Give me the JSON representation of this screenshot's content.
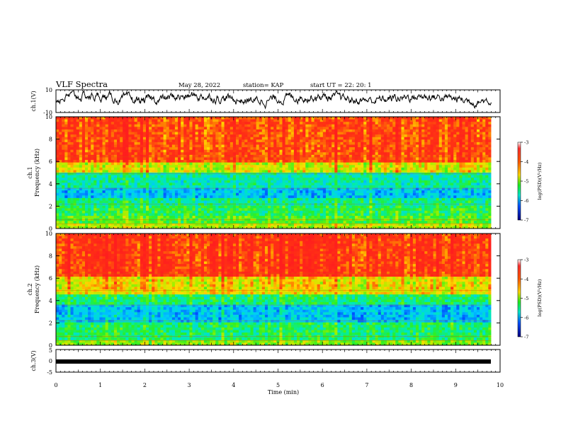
{
  "header": {
    "title": "VLF Spectra",
    "date": "May 28, 2022",
    "station": "station= KAP",
    "start": "start  UT =   22: 20: 1"
  },
  "chart_data": [
    {
      "type": "line",
      "panel": "ch1-waveform",
      "ylabel": "ch.1(V)",
      "ylim": [
        -10,
        10
      ],
      "yticks": [
        "10",
        "-10"
      ],
      "xlim": [
        0,
        10
      ],
      "series_color": "#000000",
      "series_desc": "dense noisy waveform fluctuating roughly between -6 and +8 V"
    },
    {
      "type": "heatmap",
      "panel": "ch1-spectrogram",
      "ylabel_line1": "ch.1",
      "ylabel_line2": "Frequency (kHz)",
      "ylim": [
        0,
        10
      ],
      "yticks": [
        "0",
        "2",
        "4",
        "6",
        "8",
        "10"
      ],
      "xlim": [
        0,
        9.8
      ],
      "bands": [
        {
          "from": 0,
          "to": 0.5,
          "level": -4.6
        },
        {
          "from": 0.5,
          "to": 1.2,
          "level": -5.0
        },
        {
          "from": 1.2,
          "to": 2.0,
          "level": -5.2
        },
        {
          "from": 2.0,
          "to": 2.8,
          "level": -5.4
        },
        {
          "from": 2.8,
          "to": 3.6,
          "level": -5.9
        },
        {
          "from": 3.6,
          "to": 4.9,
          "level": -5.5
        },
        {
          "from": 4.9,
          "to": 6.0,
          "level": -4.5
        },
        {
          "from": 6.0,
          "to": 10.0,
          "level": -3.7
        }
      ],
      "colorbar": {
        "label": "log(PSD)(V²/Hz)",
        "min": -7,
        "max": -3,
        "ticks": [
          "-3",
          "-4",
          "-5",
          "-6",
          "-7"
        ]
      }
    },
    {
      "type": "heatmap",
      "panel": "ch2-spectrogram",
      "ylabel_line1": "ch.2",
      "ylabel_line2": "Frequency (kHz)",
      "ylim": [
        0,
        10
      ],
      "yticks": [
        "0",
        "2",
        "4",
        "6",
        "8",
        "10"
      ],
      "xlim": [
        0,
        9.8
      ],
      "bands": [
        {
          "from": 0,
          "to": 0.5,
          "level": -4.8
        },
        {
          "from": 0.5,
          "to": 2.0,
          "level": -5.3
        },
        {
          "from": 2.0,
          "to": 3.6,
          "level": -5.9
        },
        {
          "from": 3.6,
          "to": 4.6,
          "level": -5.3
        },
        {
          "from": 4.6,
          "to": 6.2,
          "level": -4.4
        },
        {
          "from": 6.2,
          "to": 10.0,
          "level": -3.6
        }
      ],
      "colorbar": {
        "label": "log(PSD)(V²/Hz)",
        "min": -7,
        "max": -3,
        "ticks": [
          "-3",
          "-4",
          "-5",
          "-6",
          "-7"
        ]
      }
    },
    {
      "type": "line",
      "panel": "ch3-waveform",
      "ylabel": "ch.3(V)",
      "ylim": [
        -5,
        5
      ],
      "yticks": [
        "5",
        "0",
        "-5"
      ],
      "xlim": [
        0,
        10
      ],
      "series_color": "#000000",
      "series_desc": "nearly constant thick trace near 0.1 V"
    }
  ],
  "x_axis": {
    "label": "Time (min)",
    "ticks": [
      "0",
      "1",
      "2",
      "3",
      "4",
      "5",
      "6",
      "7",
      "8",
      "9",
      "10"
    ]
  }
}
